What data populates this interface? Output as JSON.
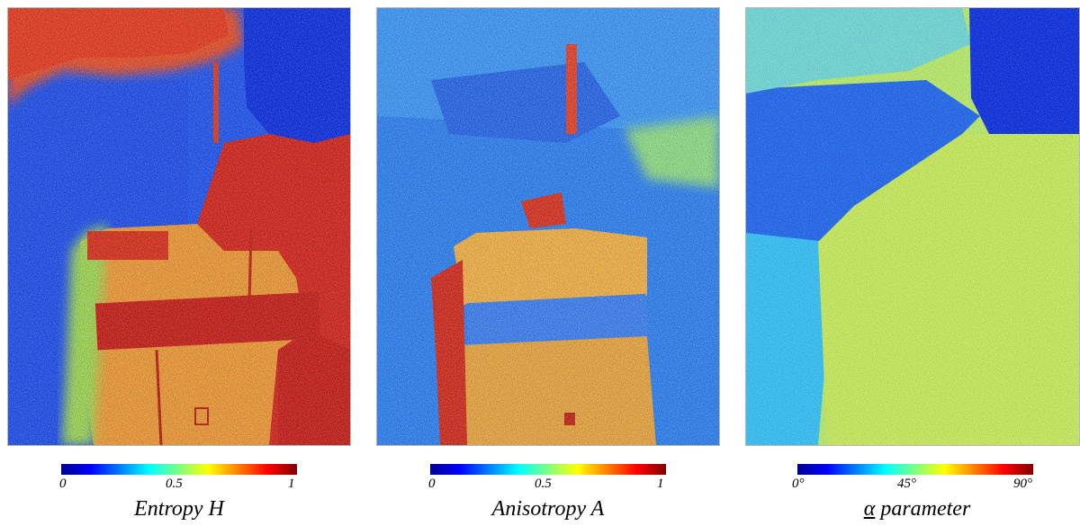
{
  "panels": [
    {
      "caption": "Entropy H",
      "ticks": [
        "0",
        "0.5",
        "1"
      ],
      "colorbar": "jet"
    },
    {
      "caption": "Anisotropy A",
      "ticks": [
        "0",
        "0.5",
        "1"
      ],
      "colorbar": "jet"
    },
    {
      "caption_symbol": "α",
      "caption_rest": " parameter",
      "ticks": [
        "0°",
        "45°",
        "90°"
      ],
      "colorbar": "jet"
    }
  ],
  "colors": {
    "water_deep": "#0a2fd9",
    "water_mid": "#1f5fe6",
    "urban_high": "#e33a12",
    "urban_mid": "#f0a025",
    "jet_start": "#00008f",
    "jet_end": "#800000"
  }
}
